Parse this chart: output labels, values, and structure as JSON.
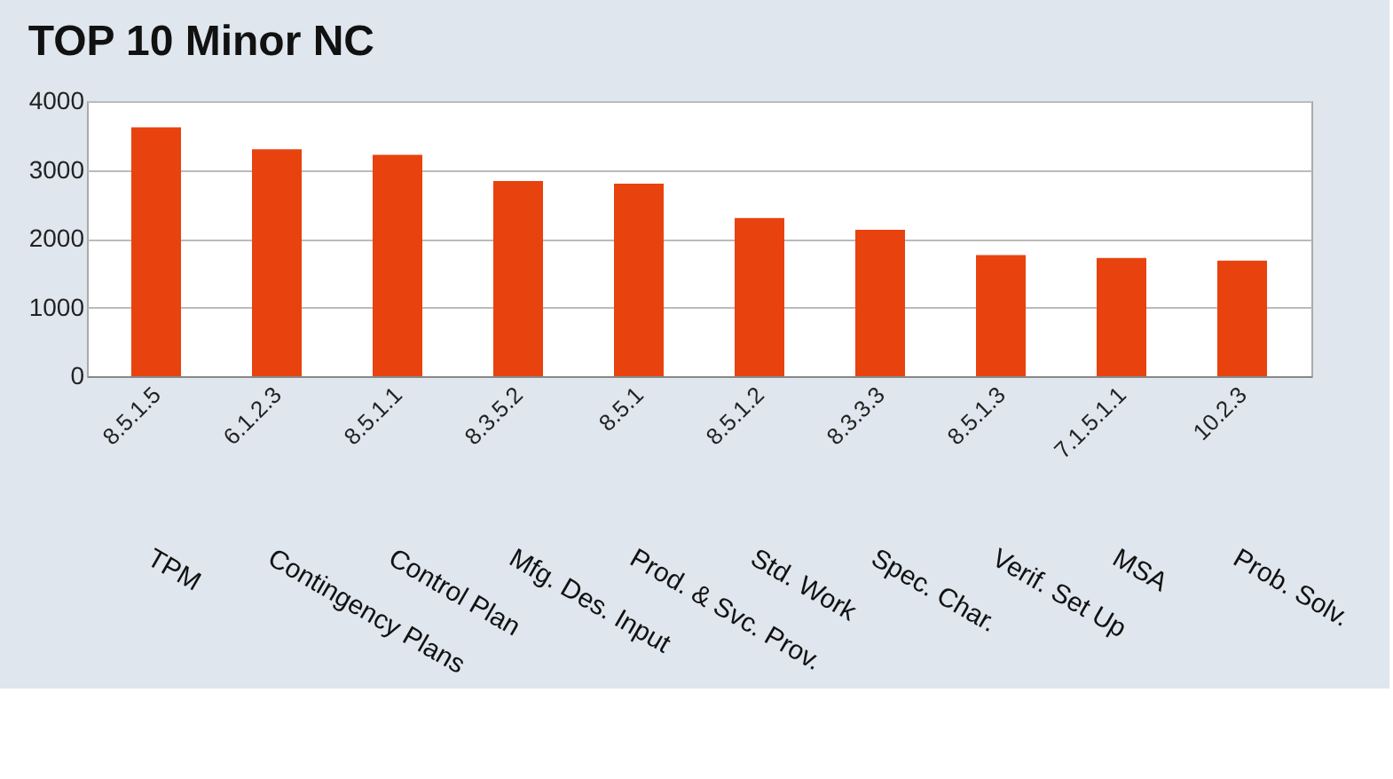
{
  "chart_data": {
    "type": "bar",
    "title": "TOP 10 Minor NC",
    "categories": [
      "8.5.1.5",
      "6.1.2.3",
      "8.5.1.1",
      "8.3.5.2",
      "8.5.1",
      "8.5.1.2",
      "8.3.3.3",
      "8.5.1.3",
      "7.1.5.1.1",
      "10.2.3"
    ],
    "values": [
      3620,
      3300,
      3220,
      2840,
      2800,
      2300,
      2130,
      1760,
      1720,
      1680
    ],
    "color": "#e8420e",
    "ylim": [
      0,
      4000
    ],
    "yticks": [
      0,
      1000,
      2000,
      3000,
      4000
    ],
    "grid": "y",
    "annotations": [
      "TPM",
      "Contingency Plans",
      "Control Plan",
      "Mfg. Des. Input",
      "Prod. & Svc. Prov.",
      "Std. Work",
      "Spec. Char.",
      "Verif. Set Up",
      "MSA",
      "Prob. Solv."
    ]
  }
}
